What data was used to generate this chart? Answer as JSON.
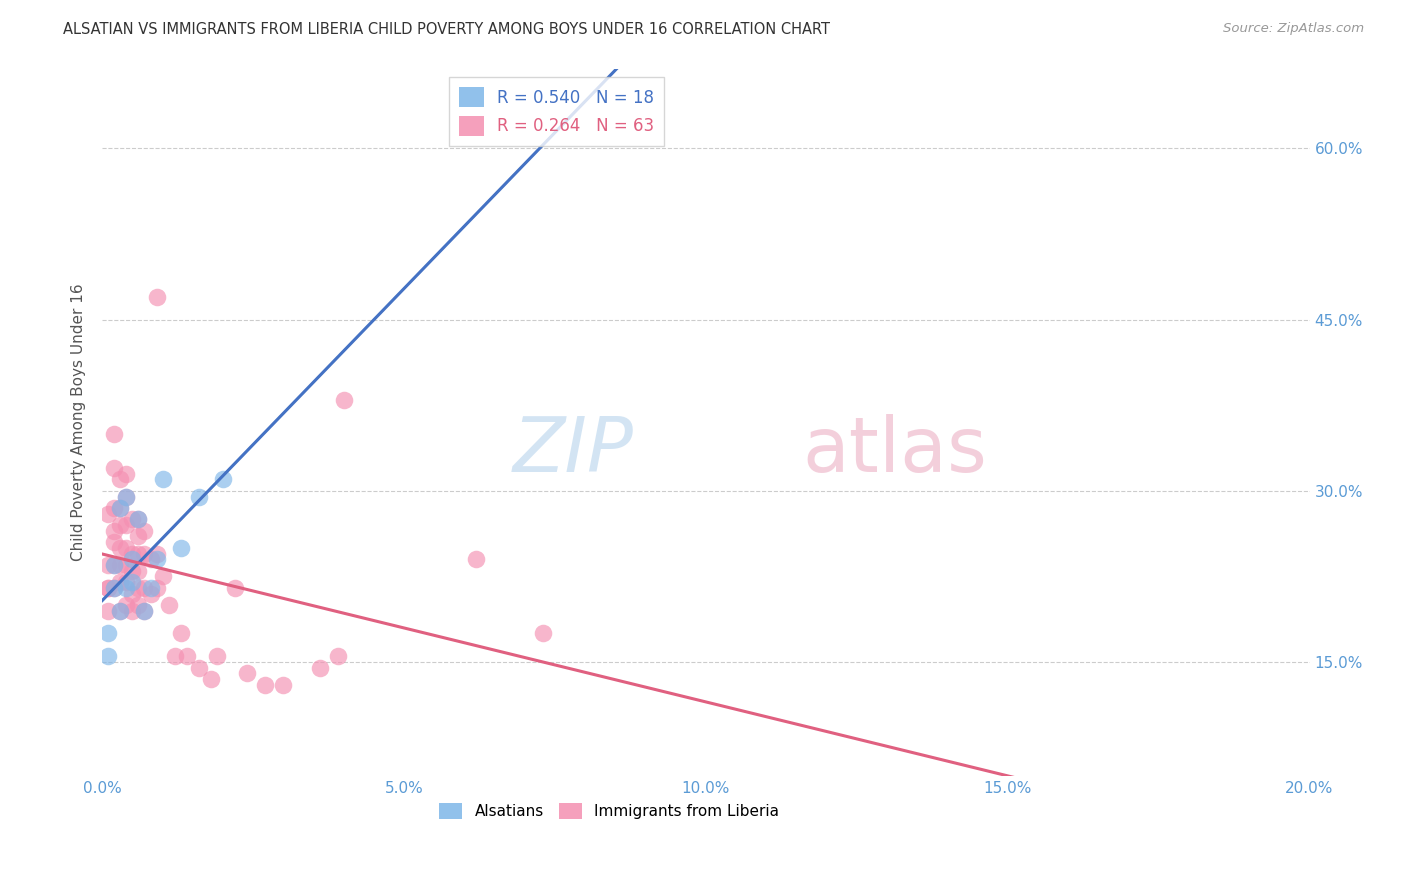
{
  "title": "ALSATIAN VS IMMIGRANTS FROM LIBERIA CHILD POVERTY AMONG BOYS UNDER 16 CORRELATION CHART",
  "source": "Source: ZipAtlas.com",
  "ylabel": "Child Poverty Among Boys Under 16",
  "ytick_values": [
    0.15,
    0.3,
    0.45,
    0.6
  ],
  "ytick_labels": [
    "15.0%",
    "30.0%",
    "45.0%",
    "60.0%"
  ],
  "xtick_values": [
    0.0,
    0.05,
    0.1,
    0.15,
    0.2
  ],
  "xtick_labels": [
    "0.0%",
    "5.0%",
    "10.0%",
    "15.0%",
    "20.0%"
  ],
  "xlim": [
    0.0,
    0.2
  ],
  "ylim": [
    0.05,
    0.67
  ],
  "color_alsatians": "#7EB6E8",
  "color_liberia": "#F48FB1",
  "color_line_alsatians": "#4472C4",
  "color_line_liberia": "#E06080",
  "color_dashed": "#9DC3E6",
  "watermark_zip": "ZIP",
  "watermark_atlas": "atlas",
  "legend_als_r": "0.540",
  "legend_als_n": "18",
  "legend_lib_r": "0.264",
  "legend_lib_n": "63",
  "alsatians_x": [
    0.001,
    0.001,
    0.002,
    0.002,
    0.003,
    0.003,
    0.004,
    0.004,
    0.005,
    0.005,
    0.006,
    0.007,
    0.008,
    0.009,
    0.01,
    0.013,
    0.016,
    0.02
  ],
  "alsatians_y": [
    0.175,
    0.155,
    0.235,
    0.215,
    0.285,
    0.195,
    0.295,
    0.215,
    0.22,
    0.24,
    0.275,
    0.195,
    0.215,
    0.24,
    0.31,
    0.25,
    0.295,
    0.31
  ],
  "liberia_x": [
    0.001,
    0.001,
    0.001,
    0.001,
    0.001,
    0.002,
    0.002,
    0.002,
    0.002,
    0.002,
    0.002,
    0.002,
    0.003,
    0.003,
    0.003,
    0.003,
    0.003,
    0.003,
    0.003,
    0.004,
    0.004,
    0.004,
    0.004,
    0.004,
    0.004,
    0.004,
    0.005,
    0.005,
    0.005,
    0.005,
    0.005,
    0.006,
    0.006,
    0.006,
    0.006,
    0.006,
    0.006,
    0.007,
    0.007,
    0.007,
    0.007,
    0.008,
    0.008,
    0.009,
    0.009,
    0.009,
    0.01,
    0.011,
    0.012,
    0.013,
    0.014,
    0.016,
    0.018,
    0.019,
    0.022,
    0.024,
    0.027,
    0.03,
    0.036,
    0.039,
    0.04,
    0.062,
    0.073
  ],
  "liberia_y": [
    0.195,
    0.215,
    0.215,
    0.235,
    0.28,
    0.215,
    0.235,
    0.255,
    0.265,
    0.285,
    0.32,
    0.35,
    0.195,
    0.22,
    0.235,
    0.25,
    0.27,
    0.285,
    0.31,
    0.2,
    0.22,
    0.235,
    0.25,
    0.27,
    0.295,
    0.315,
    0.195,
    0.21,
    0.23,
    0.245,
    0.275,
    0.2,
    0.215,
    0.23,
    0.245,
    0.26,
    0.275,
    0.195,
    0.215,
    0.245,
    0.265,
    0.21,
    0.24,
    0.215,
    0.245,
    0.47,
    0.225,
    0.2,
    0.155,
    0.175,
    0.155,
    0.145,
    0.135,
    0.155,
    0.215,
    0.14,
    0.13,
    0.13,
    0.145,
    0.155,
    0.38,
    0.24,
    0.175
  ]
}
